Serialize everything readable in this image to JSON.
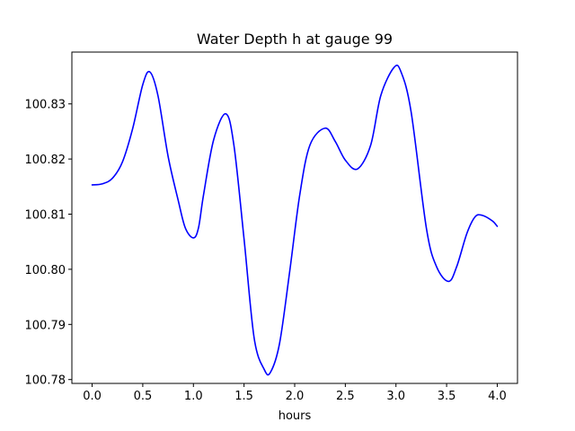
{
  "chart_data": {
    "type": "line",
    "title": "Water Depth h at gauge 99",
    "xlabel": "hours",
    "ylabel": "",
    "xlim": [
      -0.2,
      4.2
    ],
    "ylim": [
      100.7793,
      100.8394
    ],
    "xticks": [
      0.0,
      0.5,
      1.0,
      1.5,
      2.0,
      2.5,
      3.0,
      3.5,
      4.0
    ],
    "xtick_labels": [
      "0.0",
      "0.5",
      "1.0",
      "1.5",
      "2.0",
      "2.5",
      "3.0",
      "3.5",
      "4.0"
    ],
    "yticks": [
      100.78,
      100.79,
      100.8,
      100.81,
      100.82,
      100.83
    ],
    "ytick_labels": [
      "100.78",
      "100.79",
      "100.80",
      "100.81",
      "100.82",
      "100.83"
    ],
    "grid": false,
    "series": [
      {
        "color": "#0000ff",
        "x": [
          0.0,
          0.1,
          0.2,
          0.3,
          0.4,
          0.5,
          0.57,
          0.65,
          0.75,
          0.85,
          0.92,
          1.0,
          1.05,
          1.1,
          1.2,
          1.32,
          1.4,
          1.5,
          1.6,
          1.7,
          1.76,
          1.85,
          1.95,
          2.05,
          2.15,
          2.3,
          2.4,
          2.5,
          2.62,
          2.75,
          2.85,
          2.98,
          3.05,
          3.15,
          3.3,
          3.4,
          3.52,
          3.6,
          3.7,
          3.78,
          3.85,
          3.95,
          4.0
        ],
        "y": [
          100.8153,
          100.8155,
          100.8165,
          100.8195,
          100.8255,
          100.8335,
          100.8358,
          100.8315,
          100.8205,
          100.8125,
          100.8075,
          100.8057,
          100.8075,
          100.8135,
          100.8235,
          100.8282,
          100.8225,
          100.8055,
          100.7875,
          100.7818,
          100.7813,
          100.7865,
          100.7995,
          100.8135,
          100.8225,
          100.8256,
          100.8232,
          100.8198,
          100.8182,
          100.8225,
          100.8315,
          100.8366,
          100.8358,
          100.8285,
          100.8075,
          100.8005,
          100.7978,
          100.8005,
          100.8065,
          100.8095,
          100.8098,
          100.8088,
          100.8078
        ]
      }
    ]
  }
}
